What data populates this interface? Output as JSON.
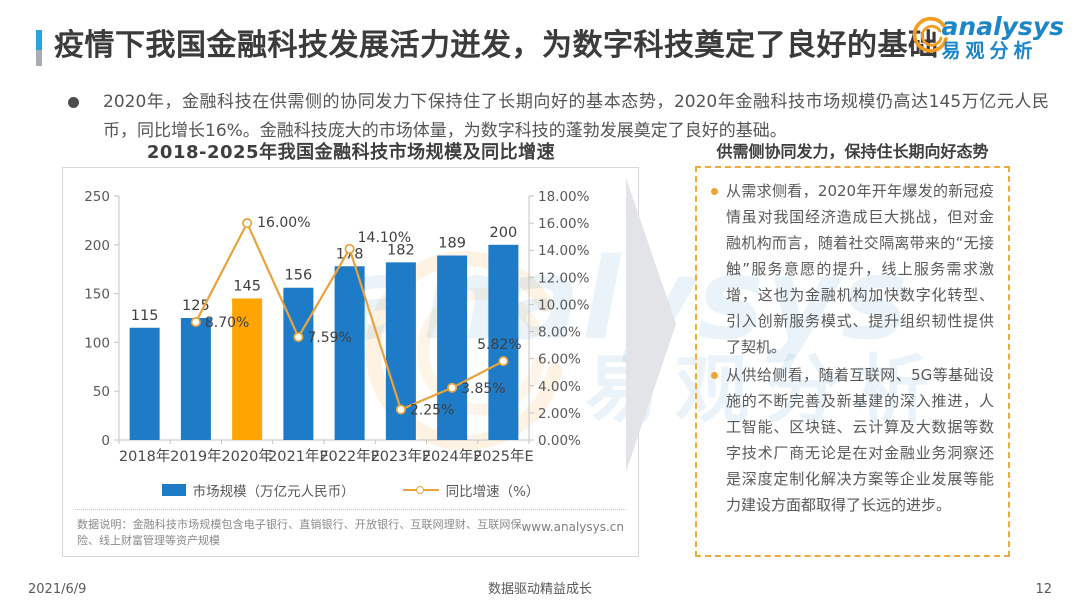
{
  "header": {
    "title": "疫情下我国金融科技发展活力迸发，为数字科技奠定了良好的基础",
    "logo": {
      "brand": "analysys",
      "brand_cn": "易观分析"
    }
  },
  "summary": {
    "bullet": "2020年，金融科技在供需侧的协同发力下保持住了长期向好的基本态势，2020年金融科技市场规模仍高达145万亿元人民币，同比增长16%。金融科技庞大的市场体量，为数字科技的蓬勃发展奠定了良好的基础。"
  },
  "chart_data": {
    "type": "bar+line",
    "title": "2018-2025年我国金融科技市场规模及同比增速",
    "categories": [
      "2018年",
      "2019年",
      "2020年",
      "2021年E",
      "2022年E",
      "2023年E",
      "2024年E",
      "2025年E"
    ],
    "series": [
      {
        "name": "市场规模（万亿元人民币）",
        "type": "bar",
        "axis": "left",
        "values": [
          115,
          125,
          145,
          156,
          178,
          182,
          189,
          200
        ],
        "color": "#1E7BC8",
        "highlight_index": 2,
        "highlight_color": "#FFA400"
      },
      {
        "name": "同比增速（%）",
        "type": "line",
        "axis": "right",
        "values": [
          null,
          8.7,
          16.0,
          7.59,
          14.1,
          2.25,
          3.85,
          5.82
        ],
        "labels": [
          null,
          "8.70%",
          "16.00%",
          "7.59%",
          "14.10%",
          "2.25%",
          "3.85%",
          "5.82%"
        ],
        "color": "#E8A33C"
      }
    ],
    "left_axis": {
      "min": 0,
      "max": 250,
      "step": 50,
      "ticks": [
        "0",
        "50",
        "100",
        "150",
        "200",
        "250"
      ]
    },
    "right_axis": {
      "min": 0,
      "max": 18,
      "step": 2,
      "ticks": [
        "0.00%",
        "2.00%",
        "4.00%",
        "6.00%",
        "8.00%",
        "10.00%",
        "12.00%",
        "14.00%",
        "16.00%",
        "18.00%"
      ]
    },
    "legend_position": "bottom",
    "grid": false,
    "note": "数据说明：金融科技市场规模包含电子银行、直销银行、开放银行、互联网理财、互联网保险、线上财富管理等资产规模",
    "source_url": "www.analysys.cn"
  },
  "insight_panel": {
    "title": "供需侧协同发力，保持住长期向好态势",
    "bullets": [
      "从需求侧看，2020年开年爆发的新冠疫情虽对我国经济造成巨大挑战，但对金融机构而言，随着社交隔离带来的“无接触”服务意愿的提升，线上服务需求激增，这也为金融机构加快数字化转型、引入创新服务模式、提升组织韧性提供了契机。",
      "从供给侧看，随着互联网、5G等基础设施的不断完善及新基建的深入推进，人工智能、区块链、云计算及大数据等数字技术厂商无论是在对金融业务洞察还是深度定制化解决方案等企业发展等能力建设方面都取得了长远的进步。"
    ]
  },
  "footer": {
    "date": "2021/6/9",
    "slogan": "数据驱动精益成长",
    "page": "12"
  },
  "colors": {
    "bar_blue": "#1E7BC8",
    "bar_highlight_orange": "#FFA400",
    "line_orange": "#E8A33C",
    "accent_blue": "#29A3DC",
    "brand_blue": "#1C86C8",
    "panel_border_orange": "#F2A93B",
    "axis_gray": "#C3C3C3"
  }
}
